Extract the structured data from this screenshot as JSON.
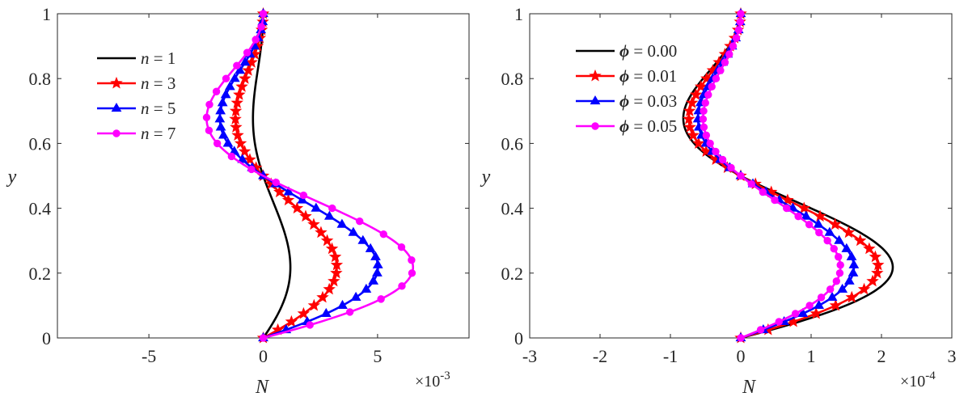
{
  "chart_data": [
    {
      "type": "line",
      "title": "",
      "xlabel": "N",
      "ylabel": "y",
      "x_scale_label": "×10",
      "x_scale_exponent": "-3",
      "xlim": [
        -9,
        9
      ],
      "ylim": [
        0,
        1
      ],
      "xticks": [
        -5,
        0,
        5
      ],
      "xtick_labels": [
        "-5",
        "0",
        "5"
      ],
      "yticks": [
        0,
        0.2,
        0.4,
        0.6,
        0.8,
        1
      ],
      "ytick_labels": [
        "0",
        "0.2",
        "0.4",
        "0.6",
        "0.8",
        "1"
      ],
      "grid": false,
      "legend_position": "upper-left",
      "legend_var": "n",
      "profile_shape": "N(y) = A·sin(2πy)·(1 − y)",
      "series": [
        {
          "name": "n = 1",
          "label_var": "n",
          "label_value": "= 1",
          "color": "#000000",
          "marker": "none",
          "amplitude": 1.55,
          "points": 0
        },
        {
          "name": "n = 3",
          "label_var": "n",
          "label_value": "= 3",
          "color": "#ff0000",
          "marker": "star",
          "amplitude": 4.2,
          "points": 41
        },
        {
          "name": "n = 5",
          "label_var": "n",
          "label_value": "= 5",
          "color": "#0000ff",
          "marker": "triangle",
          "amplitude": 6.55,
          "points": 41
        },
        {
          "name": "n = 7",
          "label_var": "n",
          "label_value": "= 7",
          "color": "#ff00ff",
          "marker": "circle",
          "amplitude": 8.55,
          "points": 26
        }
      ]
    },
    {
      "type": "line",
      "title": "",
      "xlabel": "N",
      "ylabel": "y",
      "x_scale_label": "×10",
      "x_scale_exponent": "-4",
      "xlim": [
        -3,
        3
      ],
      "ylim": [
        0,
        1
      ],
      "xticks": [
        -3,
        -2,
        -1,
        0,
        1,
        2,
        3
      ],
      "xtick_labels": [
        "-3",
        "-2",
        "-1",
        "0",
        "1",
        "2",
        "3"
      ],
      "yticks": [
        0,
        0.2,
        0.4,
        0.6,
        0.8,
        1
      ],
      "ytick_labels": [
        "0",
        "0.2",
        "0.4",
        "0.6",
        "0.8",
        "1"
      ],
      "grid": false,
      "legend_position": "upper-left",
      "legend_var": "ϕ",
      "profile_shape": "N(y) = A·sin(2πy)·(1 − y)",
      "series": [
        {
          "name": "ϕ = 0.00",
          "label_var": "ϕ",
          "label_value": "= 0.00",
          "color": "#000000",
          "marker": "none",
          "amplitude": 2.82,
          "points": 0
        },
        {
          "name": "ϕ = 0.01",
          "label_var": "ϕ",
          "label_value": "= 0.01",
          "color": "#ff0000",
          "marker": "star",
          "amplitude": 2.55,
          "points": 41
        },
        {
          "name": "ϕ = 0.03",
          "label_var": "ϕ",
          "label_value": "= 0.03",
          "color": "#0000ff",
          "marker": "triangle",
          "amplitude": 2.1,
          "points": 41
        },
        {
          "name": "ϕ = 0.05",
          "label_var": "ϕ",
          "label_value": "= 0.05",
          "color": "#ff00ff",
          "marker": "circle",
          "amplitude": 1.85,
          "points": 41
        }
      ]
    }
  ]
}
